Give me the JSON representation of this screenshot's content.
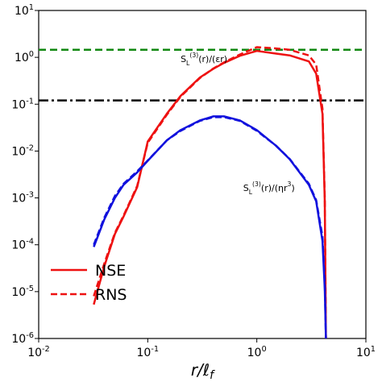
{
  "chart_data": {
    "type": "line",
    "log_x": true,
    "log_y": true,
    "xlabel": "r/ℓ_f",
    "x": [
      0.032,
      0.04,
      0.05,
      0.06,
      0.08,
      0.1,
      0.15,
      0.2,
      0.3,
      0.4,
      0.5,
      0.7,
      1.0,
      1.5,
      2,
      3,
      3.5,
      4,
      4.2,
      4.3
    ],
    "series": [
      {
        "name": "NSE",
        "color": "#ee1111",
        "dash": false,
        "values": [
          5.3e-06,
          3.5e-05,
          0.00017,
          0.0004,
          0.0017,
          0.016,
          0.063,
          0.15,
          0.37,
          0.57,
          0.76,
          1.08,
          1.37,
          1.2,
          1.1,
          0.82,
          0.45,
          0.062,
          0.0008,
          1e-06
        ]
      },
      {
        "name": "RNS",
        "color": "#ee1111",
        "dash": true,
        "values": [
          8e-06,
          4e-05,
          0.00018,
          0.00042,
          0.0018,
          0.015,
          0.06,
          0.145,
          0.36,
          0.58,
          0.78,
          1.15,
          1.65,
          1.55,
          1.45,
          1.1,
          0.7,
          0.08,
          0.001,
          1e-06
        ]
      },
      {
        "color": "#1111dd",
        "dash": false,
        "values": [
          9e-05,
          0.00035,
          0.001,
          0.0019,
          0.0035,
          0.0062,
          0.017,
          0.028,
          0.045,
          0.055,
          0.055,
          0.045,
          0.028,
          0.013,
          0.0067,
          0.0019,
          0.00085,
          0.00012,
          1.1e-05,
          1e-06
        ]
      },
      {
        "color": "#1111dd",
        "dash": true,
        "values": [
          0.0001,
          0.00038,
          0.0011,
          0.002,
          0.0037,
          0.0063,
          0.017,
          0.027,
          0.044,
          0.053,
          0.053,
          0.044,
          0.027,
          0.013,
          0.0068,
          0.002,
          0.0009,
          0.00015,
          1.5e-05,
          1e-06
        ]
      }
    ],
    "hlines": [
      {
        "value": 1.45,
        "color": "#118811",
        "style": "dashed"
      },
      {
        "value": 0.12,
        "color": "#000000",
        "style": "dashdot"
      }
    ],
    "annotations": [
      {
        "text": "S_L^(3)(r)/(εr)",
        "x": 0.2,
        "y": 0.8
      },
      {
        "text": "S_L^(3)(r)/(ηr^3)",
        "x": 0.75,
        "y": 0.0014
      }
    ],
    "xlim": [
      0.01,
      10
    ],
    "ylim": [
      1e-06,
      10
    ],
    "xticks": [
      {
        "value": 0.01,
        "label": "10^-2"
      },
      {
        "value": 0.1,
        "label": "10^-1"
      },
      {
        "value": 1,
        "label": "10^0"
      },
      {
        "value": 10,
        "label": "10^1"
      }
    ],
    "yticks": [
      {
        "value": 1e-06,
        "label": "10^-6"
      },
      {
        "value": 1e-05,
        "label": "10^-5"
      },
      {
        "value": 0.0001,
        "label": "10^-4"
      },
      {
        "value": 0.001,
        "label": "10^-3"
      },
      {
        "value": 0.01,
        "label": "10^-2"
      },
      {
        "value": 0.1,
        "label": "10^-1"
      },
      {
        "value": 1,
        "label": "10^0"
      },
      {
        "value": 10,
        "label": "10^1"
      }
    ],
    "legend": "lower left"
  }
}
